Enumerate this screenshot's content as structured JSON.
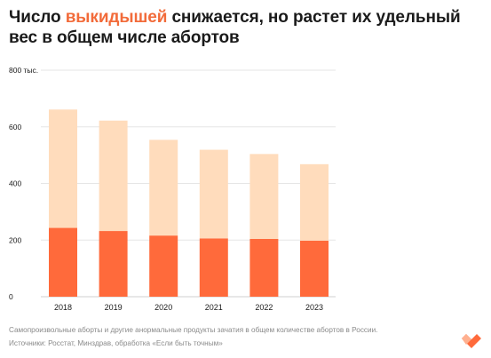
{
  "title": {
    "before": "Число ",
    "highlight": "выкидышей",
    "after": " снижается, но растет их удельный вес в общем числе абортов"
  },
  "colors": {
    "highlight": "#f26b3a",
    "bar_bottom": "#ff6a3b",
    "bar_top": "#ffdcbc",
    "grid": "#e6e6e6",
    "axis_text": "#1a1a1a",
    "footnote_text": "#8a8a8a"
  },
  "chart_data": {
    "type": "bar",
    "stacked": true,
    "categories": [
      "2018",
      "2019",
      "2020",
      "2021",
      "2022",
      "2023"
    ],
    "series": [
      {
        "values": [
          243,
          232,
          216,
          206,
          204,
          198
        ]
      },
      {
        "values": [
          418,
          390,
          338,
          313,
          300,
          270
        ]
      }
    ],
    "totals": [
      661,
      622,
      554,
      519,
      504,
      468
    ],
    "y_ticks": [
      "0",
      "200",
      "400",
      "600",
      "800 тыс."
    ],
    "y_tick_values": [
      0,
      200,
      400,
      600,
      800
    ],
    "ylim": [
      0,
      800
    ],
    "grid": true,
    "legend": "none"
  },
  "footnotes": {
    "note": "Самопроизвольные аборты и другие анормальные продукты зачатия в общем количестве абортов в России.",
    "source": "Источники: Росстат, Минздрав, обработка «Если быть точным»"
  },
  "logo": {
    "icon": "heart-logo-icon"
  }
}
